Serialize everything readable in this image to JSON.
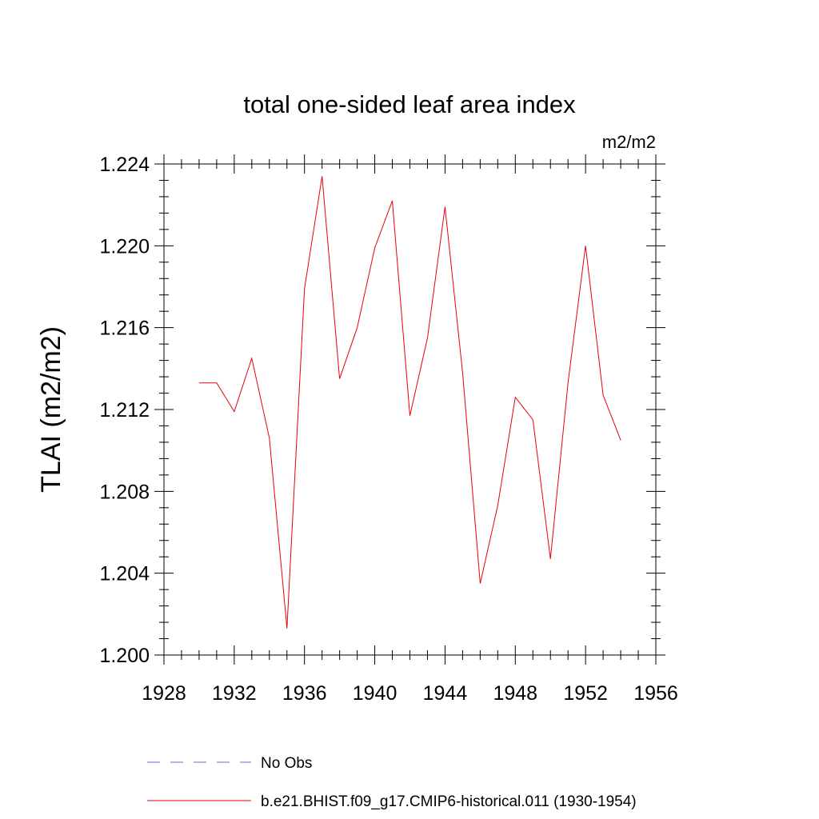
{
  "chart_data": {
    "type": "line",
    "title": "total one-sided leaf area index",
    "units": "m2/m2",
    "ylabel": "TLAI  (m2/m2)",
    "xlabel": "",
    "xlim": [
      1928,
      1956
    ],
    "ylim": [
      1.2,
      1.224
    ],
    "x_ticks": [
      1928,
      1932,
      1936,
      1940,
      1944,
      1948,
      1952,
      1956
    ],
    "x_tick_labels": [
      "1928",
      "1932",
      "1936",
      "1940",
      "1944",
      "1948",
      "1952",
      "1956"
    ],
    "y_ticks": [
      1.2,
      1.204,
      1.208,
      1.212,
      1.216,
      1.22,
      1.224
    ],
    "y_tick_labels": [
      "1.200",
      "1.204",
      "1.208",
      "1.212",
      "1.216",
      "1.220",
      "1.224"
    ],
    "grid": false,
    "legend_position": "bottom",
    "series": [
      {
        "name": "b.e21.BHIST.f09_g17.CMIP6-historical.011 (1930-1954)",
        "color": "#e8000b",
        "style": "solid",
        "x": [
          1930,
          1931,
          1932,
          1933,
          1934,
          1935,
          1936,
          1937,
          1938,
          1939,
          1940,
          1941,
          1942,
          1943,
          1944,
          1945,
          1946,
          1947,
          1948,
          1949,
          1950,
          1951,
          1952,
          1953,
          1954
        ],
        "y": [
          1.2133,
          1.2133,
          1.2119,
          1.2145,
          1.2106,
          1.2013,
          1.2179,
          1.2234,
          1.2135,
          1.216,
          1.2199,
          1.2222,
          1.2117,
          1.2155,
          1.2219,
          1.2138,
          1.2035,
          1.2073,
          1.2126,
          1.2115,
          1.2047,
          1.2133,
          1.22,
          1.2127,
          1.2105
        ]
      }
    ],
    "legend": [
      {
        "label": "No Obs",
        "color": "#6a6ad8",
        "style": "dashed"
      },
      {
        "label": "b.e21.BHIST.f09_g17.CMIP6-historical.011 (1930-1954)",
        "color": "#e8000b",
        "style": "solid"
      }
    ]
  }
}
